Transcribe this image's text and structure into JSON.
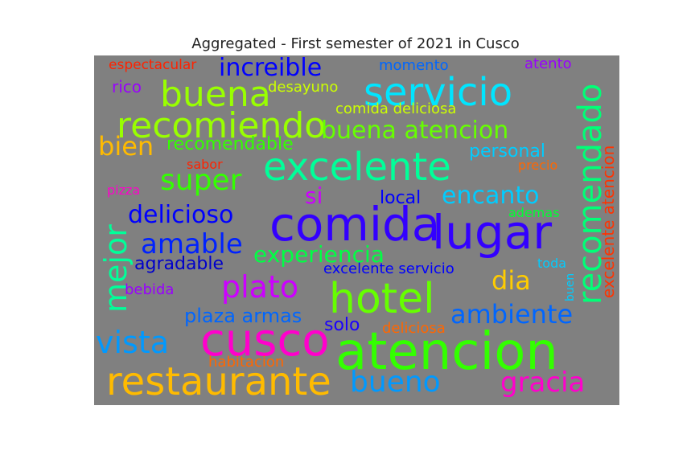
{
  "figure": {
    "title": "Aggregated - First semester of 2021 in Cusco",
    "background": "#ffffff",
    "canvas_background": "#808080"
  },
  "chart_data": {
    "type": "wordcloud",
    "title": "Aggregated - First semester of 2021 in Cusco",
    "words": [
      {
        "text": "atencion",
        "color": "#33ff00",
        "vertical": false
      },
      {
        "text": "lugar",
        "color": "#3300ff",
        "vertical": false
      },
      {
        "text": "comida",
        "color": "#3300ff",
        "vertical": false
      },
      {
        "text": "cusco",
        "color": "#ff00cc",
        "vertical": false
      },
      {
        "text": "hotel",
        "color": "#66ff00",
        "vertical": false
      },
      {
        "text": "restaurante",
        "color": "#ffbb00",
        "vertical": false
      },
      {
        "text": "excelente",
        "color": "#00ff99",
        "vertical": false
      },
      {
        "text": "servicio",
        "color": "#00e5ff",
        "vertical": false
      },
      {
        "text": "recomiendo",
        "color": "#99ff00",
        "vertical": false
      },
      {
        "text": "buena",
        "color": "#99ff00",
        "vertical": false
      },
      {
        "text": "recomendado",
        "color": "#00ff77",
        "vertical": true
      },
      {
        "text": "mejor",
        "color": "#00ff99",
        "vertical": true
      },
      {
        "text": "vista",
        "color": "#0099ff",
        "vertical": false
      },
      {
        "text": "plato",
        "color": "#cc00ff",
        "vertical": false
      },
      {
        "text": "bueno",
        "color": "#0099ff",
        "vertical": false
      },
      {
        "text": "buena atencion",
        "color": "#66ff00",
        "vertical": false
      },
      {
        "text": "increible",
        "color": "#0000ff",
        "vertical": false
      },
      {
        "text": "super",
        "color": "#33ff00",
        "vertical": false
      },
      {
        "text": "amable",
        "color": "#0022ff",
        "vertical": false
      },
      {
        "text": "ambiente",
        "color": "#0066ff",
        "vertical": false
      },
      {
        "text": "gracia",
        "color": "#ff00cc",
        "vertical": false
      },
      {
        "text": "delicioso",
        "color": "#0000ff",
        "vertical": false
      },
      {
        "text": "experiencia",
        "color": "#00ff44",
        "vertical": false
      },
      {
        "text": "encanto",
        "color": "#00ccff",
        "vertical": false
      },
      {
        "text": "dia",
        "color": "#ffcc00",
        "vertical": false
      },
      {
        "text": "bien",
        "color": "#ffbb00",
        "vertical": false
      },
      {
        "text": "si",
        "color": "#cc00ff",
        "vertical": false
      },
      {
        "text": "excelente atencion",
        "color": "#ff3300",
        "vertical": true
      },
      {
        "text": "plaza armas",
        "color": "#0066ff",
        "vertical": false
      },
      {
        "text": "recomendable",
        "color": "#33ff00",
        "vertical": false
      },
      {
        "text": "personal",
        "color": "#00ccff",
        "vertical": false
      },
      {
        "text": "agradable",
        "color": "#0000cc",
        "vertical": false
      },
      {
        "text": "local",
        "color": "#0000ff",
        "vertical": false
      },
      {
        "text": "solo",
        "color": "#1a00ff",
        "vertical": false
      },
      {
        "text": "comida deliciosa",
        "color": "#ccff00",
        "vertical": false
      },
      {
        "text": "excelente servicio",
        "color": "#0000ff",
        "vertical": false
      },
      {
        "text": "desayuno",
        "color": "#ccff00",
        "vertical": false
      },
      {
        "text": "habitacion",
        "color": "#ff6600",
        "vertical": false
      },
      {
        "text": "rico",
        "color": "#9900ff",
        "vertical": false
      },
      {
        "text": "momento",
        "color": "#0066ff",
        "vertical": false
      },
      {
        "text": "espectacular",
        "color": "#ff2200",
        "vertical": false
      },
      {
        "text": "atento",
        "color": "#9900ff",
        "vertical": false
      },
      {
        "text": "bebida",
        "color": "#9900ff",
        "vertical": false
      },
      {
        "text": "deliciosa",
        "color": "#ff6600",
        "vertical": false
      },
      {
        "text": "ademas",
        "color": "#00ff33",
        "vertical": false
      },
      {
        "text": "precio",
        "color": "#ff6600",
        "vertical": false
      },
      {
        "text": "pizza",
        "color": "#ff00cc",
        "vertical": false
      },
      {
        "text": "sabor",
        "color": "#ff2200",
        "vertical": false
      },
      {
        "text": "toda",
        "color": "#00ccff",
        "vertical": false
      },
      {
        "text": "buen",
        "color": "#00ccff",
        "vertical": true
      }
    ]
  }
}
